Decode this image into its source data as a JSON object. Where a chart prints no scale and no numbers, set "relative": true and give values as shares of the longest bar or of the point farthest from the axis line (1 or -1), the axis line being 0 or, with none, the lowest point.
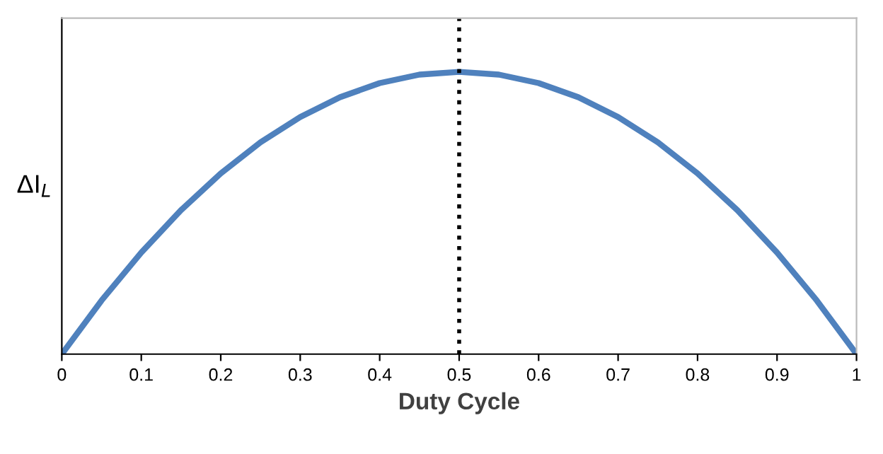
{
  "chart_data": {
    "type": "line",
    "xlabel": "Duty Cycle",
    "ylabel": "ΔI$_{L}$",
    "relative": true,
    "x": [
      0,
      0.05,
      0.1,
      0.15,
      0.2,
      0.25,
      0.3,
      0.35,
      0.4,
      0.45,
      0.5,
      0.55,
      0.6,
      0.65,
      0.7,
      0.75,
      0.8,
      0.85,
      0.9,
      0.95,
      1
    ],
    "series": [
      {
        "color": "#4f81bd",
        "values": [
          0,
          0.19,
          0.36,
          0.51,
          0.64,
          0.75,
          0.84,
          0.91,
          0.96,
          0.99,
          1,
          0.99,
          0.96,
          0.91,
          0.84,
          0.75,
          0.64,
          0.51,
          0.36,
          0.19,
          0
        ]
      }
    ],
    "xlim": [
      0,
      1
    ],
    "xticks": [
      0,
      0.1,
      0.2,
      0.3,
      0.4,
      0.5,
      0.6,
      0.7,
      0.8,
      0.9,
      1
    ],
    "ref_lines": [
      {
        "axis": "x",
        "value": 0.5,
        "color": "#000000",
        "line_style": "dotted"
      }
    ],
    "grid": false,
    "legend": false,
    "marker": "none",
    "line_style": "solid"
  }
}
